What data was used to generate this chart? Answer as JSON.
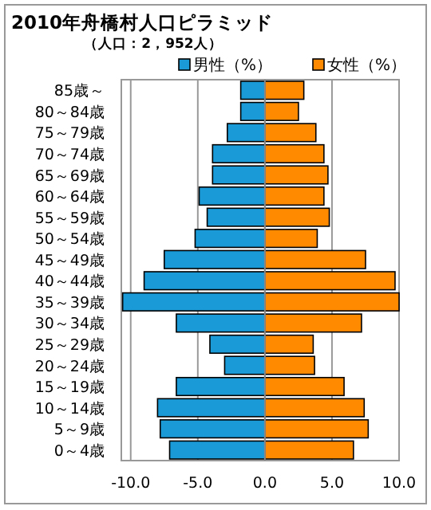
{
  "chart_data": {
    "type": "bar",
    "orientation": "horizontal",
    "stacked": true,
    "title": "2010年舟橋村人口ピラミッド",
    "subtitle": "（人口：2，952人）",
    "categories": [
      "85歳～",
      "80～84歳",
      "75～79歳",
      "70～74歳",
      "65～69歳",
      "60～64歳",
      "55～59歳",
      "50～54歳",
      "45～49歳",
      "40～44歳",
      "35～39歳",
      "30～34歳",
      "25～29歳",
      "20～24歳",
      "15～19歳",
      "10～14歳",
      "5～9歳",
      "0～4歳"
    ],
    "series": [
      {
        "name": "男性（%）",
        "color": "#1a9ad6",
        "values": [
          -1.8,
          -1.8,
          -2.8,
          -3.9,
          -3.9,
          -4.9,
          -4.3,
          -5.2,
          -7.5,
          -9.0,
          -10.6,
          -6.6,
          -4.1,
          -3.0,
          -6.6,
          -8.0,
          -7.8,
          -7.1
        ]
      },
      {
        "name": "女性（%）",
        "color": "#ff8a00",
        "values": [
          2.9,
          2.5,
          3.8,
          4.4,
          4.7,
          4.4,
          4.8,
          3.9,
          7.5,
          9.7,
          10.0,
          7.2,
          3.6,
          3.7,
          5.9,
          7.4,
          7.7,
          6.6
        ]
      }
    ],
    "xlim": [
      -10.7,
      10.0
    ],
    "xticks": [
      {
        "value": -10,
        "label": "-10.0"
      },
      {
        "value": -5,
        "label": "-5.0"
      },
      {
        "value": 0,
        "label": "0.0"
      },
      {
        "value": 5,
        "label": "5.0"
      },
      {
        "value": 10,
        "label": "10.0"
      }
    ],
    "grid": "x",
    "legend": "top right"
  }
}
